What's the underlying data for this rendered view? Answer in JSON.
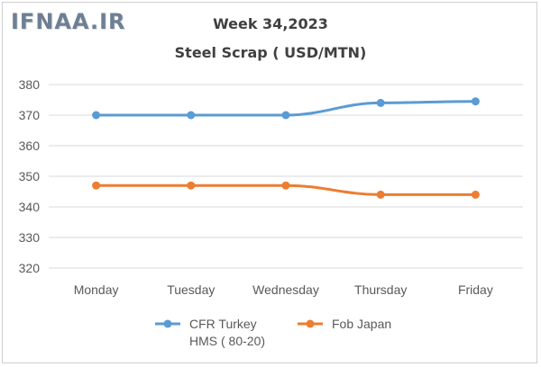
{
  "logo": {
    "text": "IFNAA.IR"
  },
  "chart_data": {
    "type": "line",
    "title": "Week 34,2023",
    "subtitle": "Steel Scrap ( USD/MTN)",
    "categories": [
      "Monday",
      "Tuesday",
      "Wednesday",
      "Thursday",
      "Friday"
    ],
    "yticks": [
      320,
      330,
      340,
      350,
      360,
      370,
      380
    ],
    "ylim": [
      320,
      380
    ],
    "grid": true,
    "legend_position": "bottom",
    "series": [
      {
        "name": "CFR Turkey HMS ( 80-20)",
        "legend_lines": [
          "CFR Turkey",
          "HMS ( 80-20)"
        ],
        "color": "#5b9bd5",
        "values": [
          370,
          370,
          370,
          374,
          374.5
        ]
      },
      {
        "name": "Fob Japan",
        "legend_lines": [
          "Fob Japan"
        ],
        "color": "#ed7d31",
        "values": [
          347,
          347,
          347,
          344,
          344
        ]
      }
    ]
  }
}
